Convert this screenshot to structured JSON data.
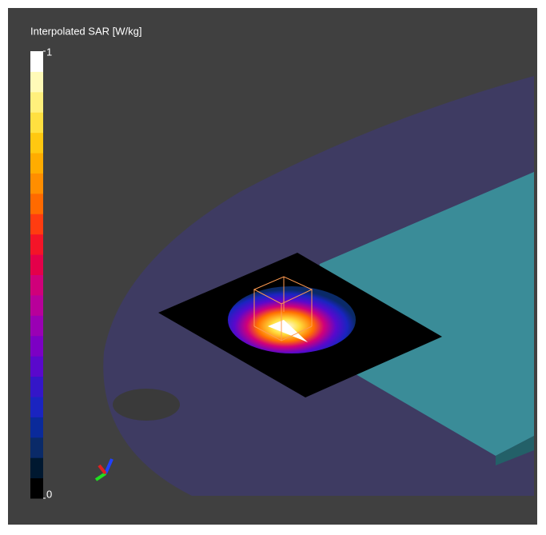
{
  "colorbar": {
    "title": "Interpolated SAR [W/kg]",
    "range": [
      0,
      1
    ],
    "ticks": [
      0,
      1
    ],
    "colors": [
      "#000000",
      "#001830",
      "#0a2a68",
      "#0a2a9a",
      "#1a24c0",
      "#3416c8",
      "#5a08cc",
      "#7c00c4",
      "#9a00b4",
      "#b8009a",
      "#d0007a",
      "#e4004a",
      "#f41428",
      "#ff3c10",
      "#ff6a00",
      "#ff8e00",
      "#ffac00",
      "#ffc810",
      "#ffe040",
      "#fff07c",
      "#fffab8",
      "#ffffff"
    ]
  }
}
